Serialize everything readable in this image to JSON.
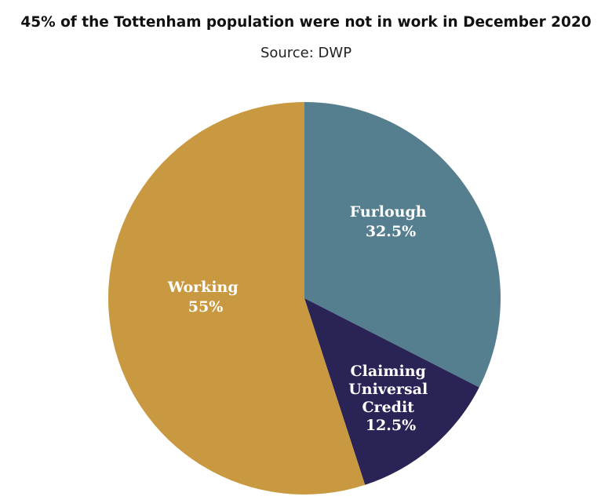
{
  "chart_data": {
    "type": "pie",
    "title": "45% of the Tottenham population were not in work in December 2020",
    "subtitle": "Source: DWP",
    "slices": [
      {
        "label": "Furlough",
        "value_label": "32.5%",
        "value": 32.5,
        "color": "#557e8e"
      },
      {
        "label": "Claiming Universal Credit",
        "value_label": "12.5%",
        "value": 12.5,
        "color": "#2a2456"
      },
      {
        "label": "Working",
        "value_label": "55%",
        "value": 55,
        "color": "#c99941"
      }
    ]
  }
}
